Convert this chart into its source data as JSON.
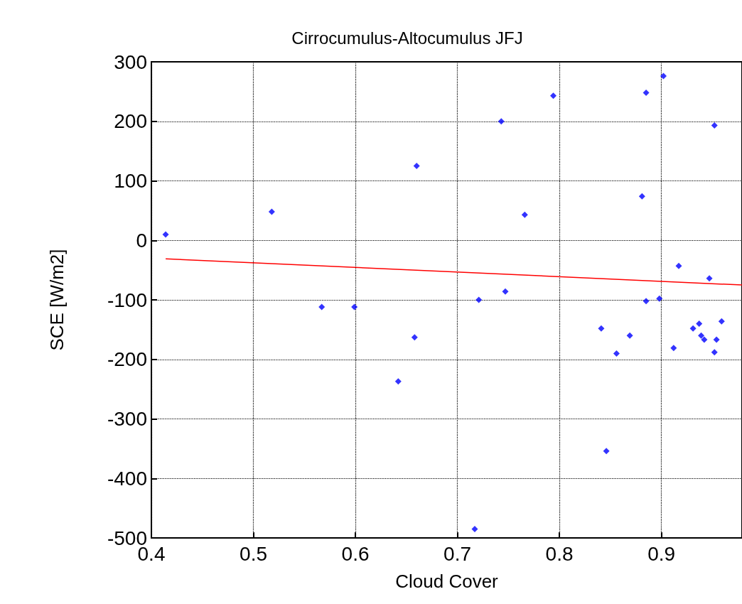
{
  "chart_data": {
    "type": "scatter",
    "title": "Cirrocumulus-Altocumulus JFJ",
    "xlabel": "Cloud Cover",
    "ylabel": "SCE [W/m2]",
    "xlim": [
      0.4,
      0.979
    ],
    "xticks": [
      0.4,
      0.5,
      0.6,
      0.7,
      0.8,
      0.9
    ],
    "ylim": [
      -500,
      300
    ],
    "yticks": [
      -500,
      -400,
      -300,
      -200,
      -100,
      0,
      100,
      200,
      300
    ],
    "grid": true,
    "marker": "diamond",
    "series": [
      {
        "color": "#0000ff",
        "x": [
          0.414,
          0.518,
          0.66,
          0.567,
          0.599,
          0.658,
          0.642,
          0.794,
          0.885,
          0.902,
          0.743,
          0.952,
          0.881,
          0.766,
          0.917,
          0.947,
          0.747,
          0.721,
          0.885,
          0.898,
          0.841,
          0.869,
          0.856,
          0.912,
          0.931,
          0.937,
          0.939,
          0.942,
          0.954,
          0.959,
          0.952,
          0.846,
          0.717
        ],
        "values": [
          10,
          48,
          125,
          -112,
          -112,
          -163,
          -237,
          243,
          248,
          276,
          200,
          193,
          74,
          43,
          -43,
          -64,
          -86,
          -100,
          -102,
          -98,
          -148,
          -160,
          -190,
          -181,
          -148,
          -140,
          -160,
          -167,
          -167,
          -136,
          -188,
          -354,
          -485
        ]
      },
      {
        "type": "line",
        "color": "#ff0000",
        "marker": "none",
        "x": [
          0.414,
          0.979
        ],
        "values": [
          -31,
          -75
        ]
      }
    ]
  }
}
